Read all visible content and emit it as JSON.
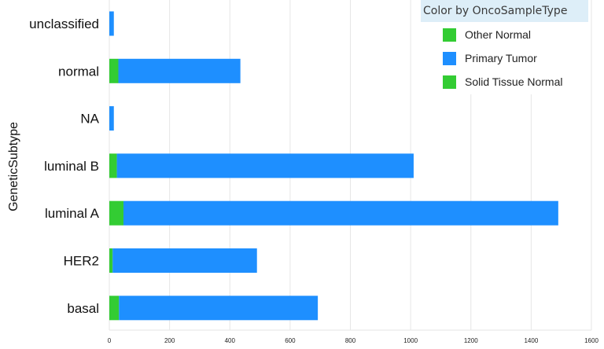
{
  "chart_data": {
    "type": "bar",
    "orientation": "horizontal",
    "stacked": true,
    "title": "",
    "xlabel": "",
    "ylabel": "GeneticSubtype",
    "categories": [
      "unclassified",
      "normal",
      "NA",
      "luminal B",
      "luminal A",
      "HER2",
      "basal"
    ],
    "series": [
      {
        "name": "Other Normal",
        "color": "#33cc33",
        "values": [
          0,
          0,
          0,
          0,
          0,
          0,
          0
        ]
      },
      {
        "name": "Solid Tissue Normal",
        "color": "#33cc33",
        "values": [
          0,
          30,
          0,
          25,
          47,
          11,
          32
        ]
      },
      {
        "name": "Primary Tumor",
        "color": "#1e8fff",
        "values": [
          15,
          405,
          15,
          985,
          1443,
          479,
          660
        ]
      }
    ],
    "xlim": [
      0,
      1600
    ],
    "xticks": [
      0,
      200,
      400,
      600,
      800,
      1000,
      1200,
      1400,
      1600
    ],
    "grid": {
      "vertical": true,
      "horizontal": false
    },
    "legend": {
      "title": "Color by OncoSampleType",
      "placement": "top-right",
      "items": [
        {
          "label": "Other Normal",
          "color": "#33cc33"
        },
        {
          "label": "Primary Tumor",
          "color": "#1e8fff"
        },
        {
          "label": "Solid Tissue Normal",
          "color": "#33cc33"
        }
      ]
    }
  }
}
